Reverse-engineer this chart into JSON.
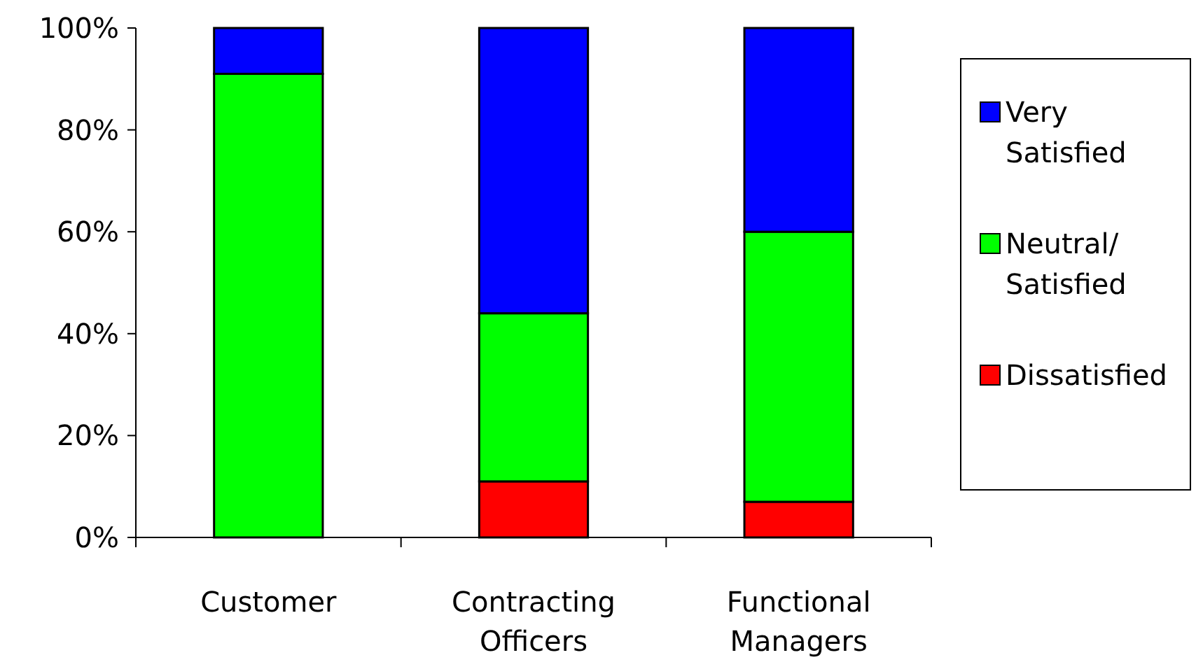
{
  "chart_data": {
    "type": "bar",
    "stacked": true,
    "categories": [
      "Customer",
      "Contracting Officers",
      "Functional Managers"
    ],
    "series": [
      {
        "name": "Dissatisfied",
        "color": "#ff0000",
        "values": [
          0,
          11,
          7
        ]
      },
      {
        "name": "Neutral/Satisfied",
        "color": "#00ff00",
        "values": [
          91,
          33,
          53
        ]
      },
      {
        "name": "Very Satisfied",
        "color": "#0000ff",
        "values": [
          9,
          56,
          40
        ]
      }
    ],
    "ylim": [
      0,
      100
    ],
    "yticks": [
      {
        "value": 0,
        "label": "0%"
      },
      {
        "value": 20,
        "label": "20%"
      },
      {
        "value": 40,
        "label": "40%"
      },
      {
        "value": 60,
        "label": "60%"
      },
      {
        "value": 80,
        "label": "80%"
      },
      {
        "value": 100,
        "label": "100%"
      }
    ],
    "grid": false,
    "legend": "right"
  }
}
